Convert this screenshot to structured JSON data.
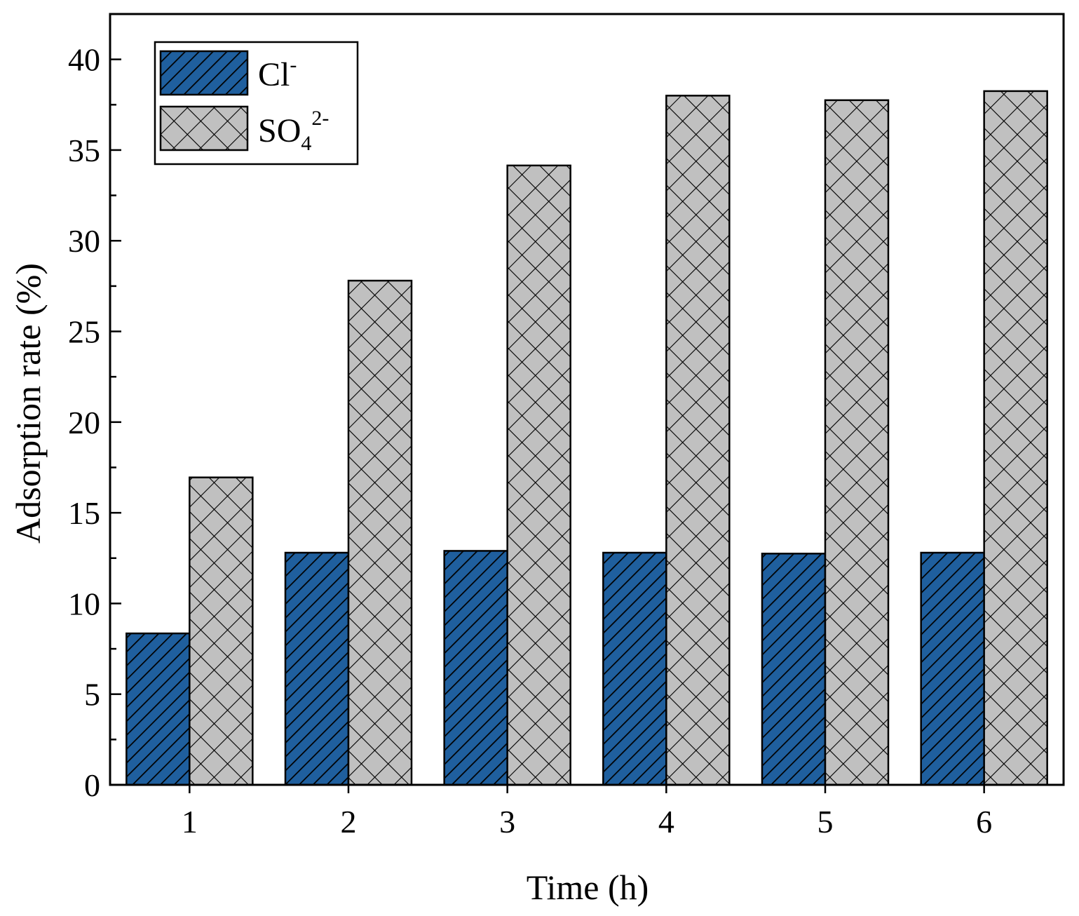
{
  "chart_data": {
    "type": "bar",
    "title": "",
    "xlabel": "Time (h)",
    "ylabel": "Adsorption rate (%)",
    "categories": [
      "1",
      "2",
      "3",
      "4",
      "5",
      "6"
    ],
    "ylim": [
      0,
      42.5
    ],
    "yticks": [
      "0",
      "5",
      "10",
      "15",
      "20",
      "25",
      "30",
      "35",
      "40"
    ],
    "series": [
      {
        "name": "Cl-",
        "label_base": "Cl",
        "label_sup": "-",
        "label_sub": "",
        "fill": "#1f5f9e",
        "pattern": "diagonal-hatch",
        "values": [
          8.35,
          12.8,
          12.9,
          12.8,
          12.75,
          12.8
        ]
      },
      {
        "name": "SO4 2-",
        "label_base": "SO",
        "label_sub": "4",
        "label_sup": "2-",
        "fill": "#c0c0c0",
        "pattern": "cross-hatch",
        "values": [
          16.95,
          27.8,
          34.15,
          38.0,
          37.75,
          38.25
        ]
      }
    ],
    "legend_position": "top-left",
    "grid": false
  }
}
